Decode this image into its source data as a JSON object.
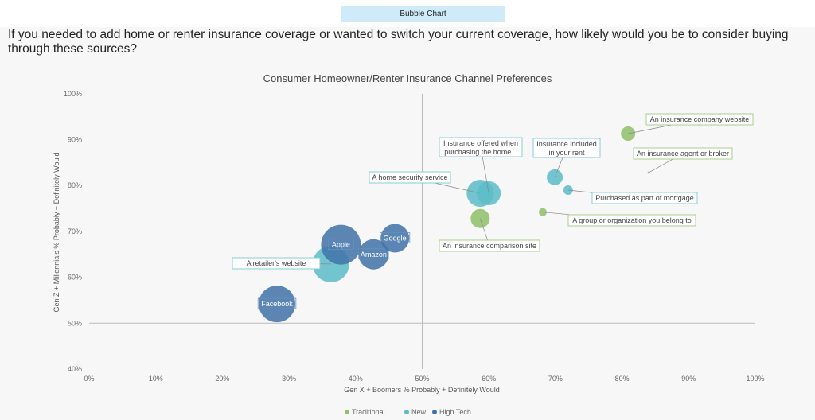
{
  "tab": {
    "label": "Bubble Chart"
  },
  "question": "If you needed to add home or renter insurance coverage or wanted to switch your current coverage, how likely would you be to consider buying through these sources?",
  "chart_data": {
    "type": "scatter",
    "title": "Consumer Homeowner/Renter Insurance Channel Preferences",
    "xlabel": "Gen X + Boomers % Probably + Definitely Would",
    "ylabel": "Gen Z + Millennials % Probably + Definitely Would",
    "xlim": [
      0,
      100
    ],
    "ylim": [
      40,
      100
    ],
    "xticks": [
      "0%",
      "10%",
      "20%",
      "30%",
      "40%",
      "50%",
      "60%",
      "70%",
      "80%",
      "90%",
      "100%"
    ],
    "yticks": [
      "40%",
      "50%",
      "60%",
      "70%",
      "80%",
      "90%",
      "100%"
    ],
    "reference_lines": {
      "x": 50,
      "y": 50
    },
    "legend": {
      "placement": "bottom",
      "entries": [
        {
          "name": "Traditional",
          "color": "#8fc06a"
        },
        {
          "name": "New",
          "color": "#5bbcc8"
        },
        {
          "name": "High Tech",
          "color": "#3f72a8"
        }
      ]
    },
    "points": [
      {
        "label": "Facebook",
        "series": "High Tech",
        "x": 28.2,
        "y": 54.2,
        "size": 23
      },
      {
        "label": "A retailer's website",
        "series": "New",
        "x": 36.3,
        "y": 62.9,
        "size": 23
      },
      {
        "label": "Apple",
        "series": "High Tech",
        "x": 37.8,
        "y": 67.1,
        "size": 25
      },
      {
        "label": "Amazon",
        "series": "High Tech",
        "x": 42.7,
        "y": 65.0,
        "size": 19
      },
      {
        "label": "Google",
        "series": "High Tech",
        "x": 45.9,
        "y": 68.5,
        "size": 18
      },
      {
        "label": "A home security service",
        "series": "New",
        "x": 58.7,
        "y": 78.3,
        "size": 17
      },
      {
        "label": "Insurance offered when purchasing the home...",
        "series": "New",
        "x": 60.0,
        "y": 78.3,
        "size": 15
      },
      {
        "label": "An insurance comparison site",
        "series": "Traditional",
        "x": 58.7,
        "y": 72.8,
        "size": 12
      },
      {
        "label": "A group or organization you belong to",
        "series": "Traditional",
        "x": 68.1,
        "y": 74.2,
        "size": 5
      },
      {
        "label": "Insurance included in your rent",
        "series": "New",
        "x": 69.9,
        "y": 81.8,
        "size": 10
      },
      {
        "label": "Purchased as part of mortgage",
        "series": "New",
        "x": 71.9,
        "y": 79.0,
        "size": 6
      },
      {
        "label": "An insurance company website",
        "series": "Traditional",
        "x": 80.9,
        "y": 91.3,
        "size": 9
      },
      {
        "label": "An insurance agent or broker",
        "series": "Traditional",
        "x": 84.0,
        "y": 82.8,
        "size": 1.5
      }
    ]
  }
}
